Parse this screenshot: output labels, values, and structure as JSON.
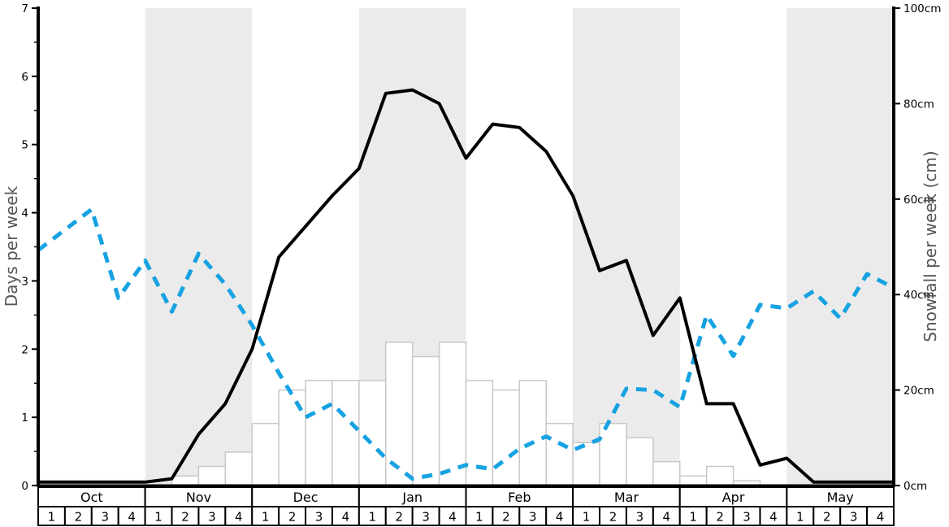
{
  "chart_data": {
    "type": "bar+line combo (weekly climate chart)",
    "title": "",
    "months": [
      "Oct",
      "Nov",
      "Dec",
      "Jan",
      "Feb",
      "Mar",
      "Apr",
      "May"
    ],
    "weeks_per_month": 4,
    "week_labels": [
      "1",
      "2",
      "3",
      "4"
    ],
    "shaded_month_indices": [
      1,
      3,
      5,
      7
    ],
    "left_axis": {
      "label": "Days per week",
      "range": [
        0,
        7
      ],
      "major_ticks": [
        0,
        1,
        2,
        3,
        4,
        5,
        6,
        7
      ],
      "tick_labels": [
        "0",
        "1",
        "2",
        "3",
        "4",
        "5",
        "6",
        "7"
      ],
      "minor_tick_step": 0.5
    },
    "right_axis": {
      "label": "Snowfall per week (cm)",
      "range": [
        0,
        100
      ],
      "major_ticks": [
        0,
        20,
        40,
        60,
        80,
        100
      ],
      "tick_labels": [
        "0cm",
        "20cm",
        "40cm",
        "60cm",
        "80cm",
        "100cm"
      ]
    },
    "x_layout_note": "32 weekly slots; line points sit on week-start boundaries with a 33rd point on the right spine; bars fill each weekly slot",
    "series": [
      {
        "id": "snowfall_bars",
        "name": "snowfall-per-week-bar",
        "type": "bar",
        "axis": "right",
        "unit": "cm",
        "values": [
          0,
          0,
          0,
          0,
          0,
          2,
          4,
          7,
          13,
          20,
          22,
          22,
          22,
          30,
          27,
          30,
          22,
          20,
          22,
          13,
          9,
          13,
          10,
          5,
          2,
          4,
          1,
          0,
          0,
          0,
          0,
          0
        ]
      },
      {
        "id": "line_black_solid",
        "name": "black-solid-days-line",
        "type": "line",
        "style": "solid",
        "axis": "left",
        "unit": "days",
        "values": [
          0.05,
          0.05,
          0.05,
          0.05,
          0.05,
          0.1,
          0.75,
          1.2,
          2.0,
          3.35,
          3.8,
          4.25,
          4.65,
          5.75,
          5.8,
          5.6,
          4.8,
          5.3,
          5.25,
          4.9,
          4.25,
          3.15,
          3.3,
          2.2,
          2.75,
          1.2,
          1.2,
          0.3,
          0.4,
          0.05,
          0.05,
          0.05,
          0.05
        ]
      },
      {
        "id": "line_blue_dashed",
        "name": "blue-dashed-days-line",
        "type": "line",
        "style": "dashed",
        "axis": "left",
        "unit": "days",
        "values": [
          3.45,
          3.75,
          4.05,
          2.75,
          3.3,
          2.55,
          3.4,
          2.95,
          2.35,
          1.65,
          1.0,
          1.2,
          0.8,
          0.4,
          0.1,
          0.17,
          0.3,
          0.24,
          0.54,
          0.72,
          0.52,
          0.68,
          1.42,
          1.4,
          1.15,
          2.5,
          1.9,
          2.65,
          2.6,
          2.85,
          2.45,
          3.1,
          2.9
        ]
      }
    ],
    "colors": {
      "blue_line": "#17a2e2",
      "black_line": "#000000",
      "bar_fill": "#ffffff",
      "bar_border": "#c8c8c8",
      "month_band": "#ebebeb",
      "axis_title": "#555555",
      "tick_label": "#000000",
      "table_border": "#000000"
    }
  }
}
